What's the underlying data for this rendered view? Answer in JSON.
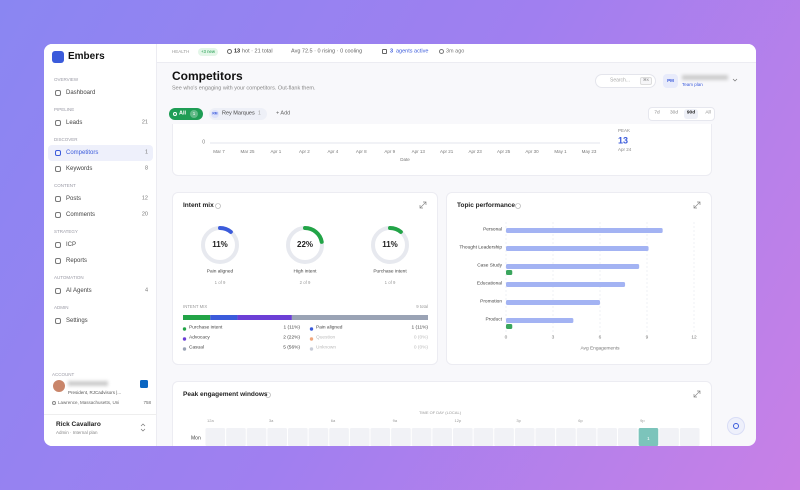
{
  "sidebar": {
    "brand": "Embers",
    "sections": [
      {
        "title": "OVERVIEW",
        "items": [
          {
            "label": "Dashboard"
          }
        ]
      },
      {
        "title": "PIPELINE",
        "items": [
          {
            "label": "Leads",
            "count": 21
          }
        ]
      },
      {
        "title": "DISCOVER",
        "items": [
          {
            "label": "Competitors",
            "count": 1,
            "active": true
          },
          {
            "label": "Keywords",
            "count": 8
          }
        ]
      },
      {
        "title": "CONTENT",
        "items": [
          {
            "label": "Posts",
            "count": 12
          },
          {
            "label": "Comments",
            "count": 20
          }
        ]
      },
      {
        "title": "STRATEGY",
        "items": [
          {
            "label": "ICP"
          },
          {
            "label": "Reports"
          }
        ]
      },
      {
        "title": "AUTOMATION",
        "items": [
          {
            "label": "AI Agents",
            "count": 4
          }
        ]
      },
      {
        "title": "ADMIN",
        "items": [
          {
            "label": "Settings"
          }
        ]
      }
    ],
    "account": {
      "title": "ACCOUNT",
      "headline": "President, RJCadvisors |...",
      "location": "Lawrence, Massachusetts, Uni",
      "connections": 758
    },
    "user": {
      "name": "Rick Cavallaro",
      "role": "Admin · Internal plan"
    }
  },
  "topbar": {
    "health": "HEALTH",
    "new_badge": "+3 new",
    "hot": 13,
    "hot_total": "hot · 21 total",
    "scores": "Avg 72.5 · 0 rising · 0 cooling",
    "agents": 3,
    "agents_label": "agents active",
    "updated": "3m ago"
  },
  "header": {
    "title": "Competitors",
    "subtitle": "See who's engaging with your competitors. Out-flank them.",
    "search": "Search...",
    "shortcut": "⌘K",
    "avatar": "PM",
    "plan": "Team plan"
  },
  "filters": {
    "tabs": [
      {
        "label": "All",
        "count": 1
      },
      {
        "avatar": "RM",
        "label": "Rey Marques",
        "count": 1
      }
    ],
    "add": "+ Add",
    "ranges": [
      "7d",
      "30d",
      "90d",
      "All"
    ],
    "active_range": 2
  },
  "activity": {
    "x": [
      "Mar 7",
      "Mar 25",
      "Apr 1",
      "Apr 2",
      "Apr 4",
      "Apr 8",
      "Apr 9",
      "Apr 13",
      "Apr 21",
      "Apr 23",
      "Apr 25",
      "Apr 30",
      "May 1",
      "May 23"
    ],
    "xlabel": "Date",
    "yticks": [
      0
    ],
    "peak_label": "PEAK",
    "peak_value": 13,
    "peak_date": "Apr 24"
  },
  "intent_mix": {
    "title": "Intent mix",
    "donuts": [
      {
        "value": 11,
        "value_label": "11%",
        "label": "Pain aligned",
        "detail": "1 of 9",
        "color": "#3b5bdb"
      },
      {
        "value": 22,
        "value_label": "22%",
        "label": "High intent",
        "detail": "2 of 9",
        "color": "#22a447"
      },
      {
        "value": 11,
        "value_label": "11%",
        "label": "Purchase intent",
        "detail": "1 of 9",
        "color": "#22a447"
      }
    ],
    "bar_title": "INTENT MIX",
    "total_label": "9 total",
    "categories": [
      "Purchase intent",
      "Pain aligned",
      "Advocacy",
      "Question",
      "Casual",
      "Unknown"
    ],
    "values": [
      1,
      1,
      2,
      0,
      5,
      0
    ],
    "value_labels": [
      "1 (11%)",
      "1 (11%)",
      "2 (22%)",
      "0 (0%)",
      "5 (56%)",
      "0 (0%)"
    ],
    "colors": [
      "#22a447",
      "#3b5bdb",
      "#6c3fd6",
      "#f0a77d",
      "#9aa3b5",
      "#c9cdd8"
    ]
  },
  "topic_performance": {
    "title": "Topic performance",
    "type": "bar",
    "categories": [
      "Personal",
      "Thought Leadership",
      "Case Study",
      "Educational",
      "Promotion",
      "Product"
    ],
    "series": [
      {
        "color": "#a3b3f3",
        "values": [
          10,
          9.1,
          8.5,
          7.6,
          6,
          4.3
        ]
      },
      {
        "color": "#3aa55d",
        "values": [
          null,
          null,
          0.4,
          null,
          null,
          0.4
        ]
      }
    ],
    "xlim": [
      0,
      12
    ],
    "xticks": [
      0,
      3,
      6,
      9,
      12
    ],
    "xlabel": "Avg Engagements",
    "grid": true
  },
  "peak_windows": {
    "title": "Peak engagement windows",
    "axis_label": "TIME OF DAY (LOCAL)",
    "hour_labels": [
      "12a",
      "3a",
      "6a",
      "9a",
      "12p",
      "3p",
      "6p",
      "9p"
    ],
    "rows": [
      {
        "day": "Mon",
        "values": [
          0,
          0,
          0,
          0,
          0,
          0,
          0,
          0,
          0,
          0,
          0,
          0,
          0,
          0,
          0,
          0,
          0,
          0,
          0,
          0,
          0,
          1,
          0,
          0
        ]
      }
    ]
  }
}
